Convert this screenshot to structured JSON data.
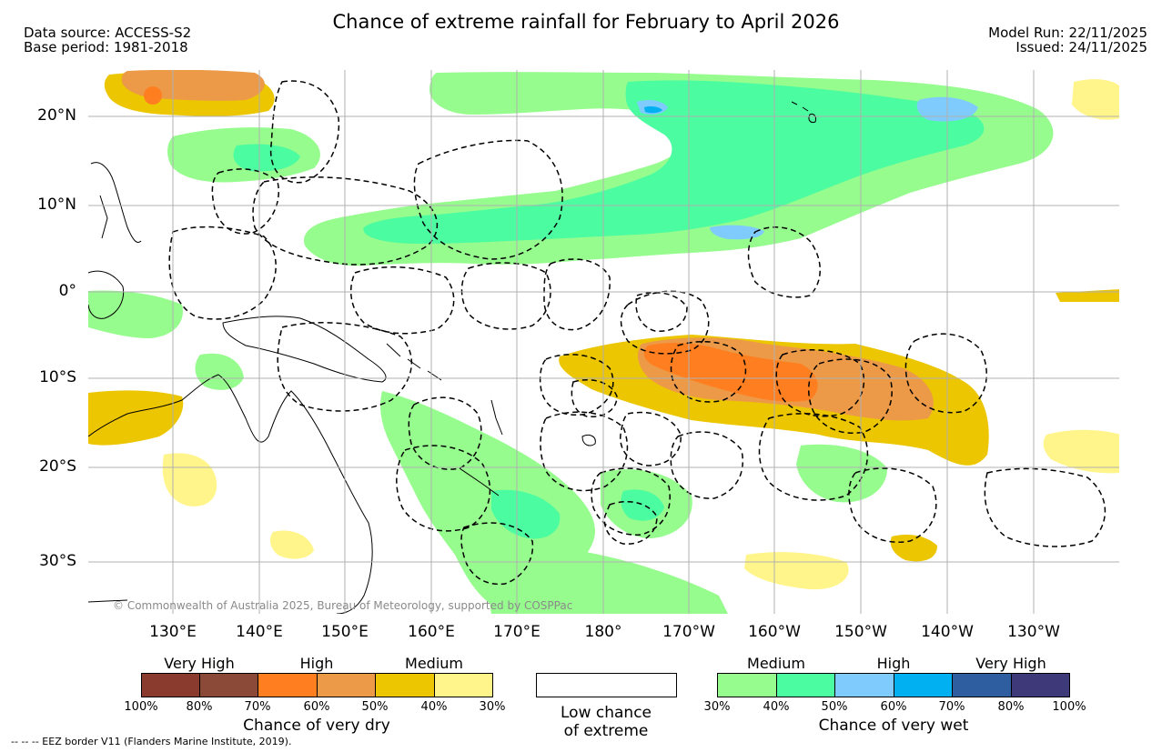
{
  "header": {
    "title": "Chance of extreme rainfall for February to April 2026",
    "data_source": "Data source: ACCESS-S2",
    "base_period": "Base period: 1981-2018",
    "model_run": "Model Run: 22/11/2025",
    "issued": "Issued: 24/11/2025"
  },
  "map": {
    "lat_labels": [
      "20°N",
      "10°N",
      "0°",
      "10°S",
      "20°S",
      "30°S"
    ],
    "lon_labels": [
      "130°E",
      "140°E",
      "150°E",
      "160°E",
      "170°E",
      "180°",
      "170°W",
      "160°W",
      "150°W",
      "140°W",
      "130°W"
    ],
    "copyright": "© Commonwealth of Australia 2025, Bureau of Meteorology, supported by COSPPac",
    "colors": {
      "land_outline": "#000000",
      "gridline": "#b0b0b0",
      "eez_line": "#000000"
    }
  },
  "legend": {
    "dry": {
      "category_labels": [
        "Very High",
        "High",
        "Medium"
      ],
      "colors": [
        "#8b3a2e",
        "#8b4a38",
        "#ff7f20",
        "#ec9a48",
        "#ecc600",
        "#fff58a"
      ],
      "ticks": [
        "100%",
        "80%",
        "70%",
        "60%",
        "50%",
        "40%",
        "30%"
      ],
      "caption": "Chance of very dry"
    },
    "neutral": {
      "caption_line1": "Low chance",
      "caption_line2": "of extreme",
      "color": "#ffffff"
    },
    "wet": {
      "category_labels": [
        "Medium",
        "High",
        "Very High"
      ],
      "colors": [
        "#97fc8e",
        "#4cfca0",
        "#7fcbfd",
        "#00b0f0",
        "#2e5ea0",
        "#3e3a7a"
      ],
      "ticks": [
        "30%",
        "40%",
        "50%",
        "60%",
        "70%",
        "80%",
        "100%"
      ],
      "caption": "Chance of very wet"
    }
  },
  "footer": {
    "eez_note": "-- -- -- EEZ border V11 (Flanders Marine Institute, 2019)."
  }
}
